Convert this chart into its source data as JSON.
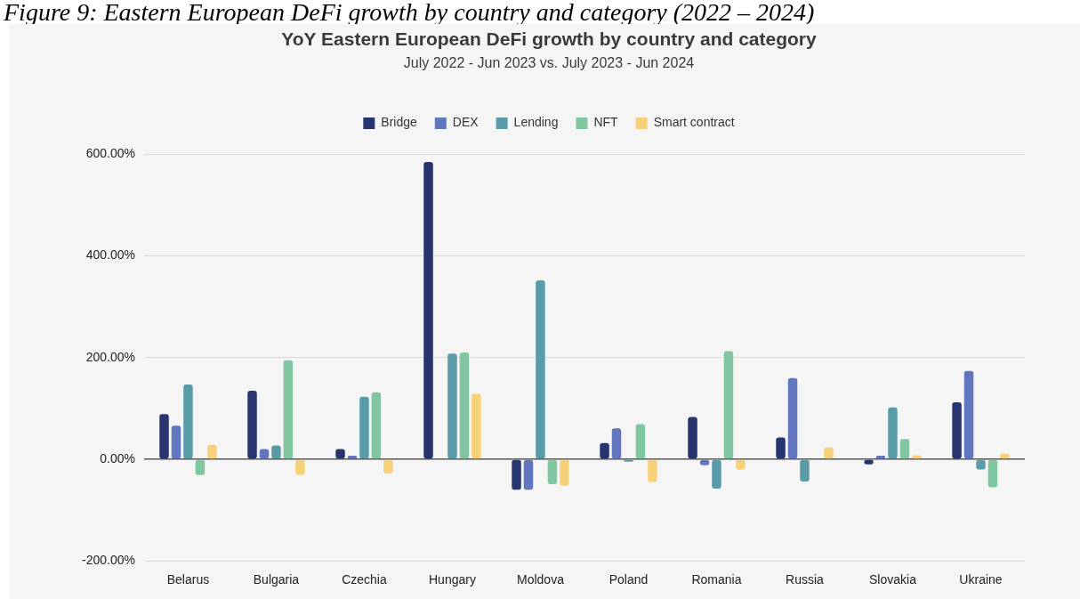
{
  "chart_data": {
    "type": "bar",
    "title": "YoY Eastern European DeFi growth by country and category",
    "subtitle": "July 2022 - Jun 2023 vs. July 2023 - Jun 2024",
    "annotations": [
      "Figure 9: Eastern European DeFi growth by country and category (2022 – 2024)"
    ],
    "categories": [
      "Belarus",
      "Bulgaria",
      "Czechia",
      "Hungary",
      "Moldova",
      "Poland",
      "Romania",
      "Russia",
      "Slovakia",
      "Ukraine"
    ],
    "series": [
      {
        "name": "Bridge",
        "color": "#27346e",
        "values": [
          89,
          135,
          20,
          585,
          -60,
          32,
          83,
          43,
          -10,
          112
        ]
      },
      {
        "name": "DEX",
        "color": "#6176be",
        "values": [
          66,
          20,
          7,
          null,
          -60,
          61,
          -12,
          160,
          7,
          174
        ]
      },
      {
        "name": "Lending",
        "color": "#5a9ba8",
        "values": [
          147,
          27,
          123,
          208,
          352,
          -5,
          -58,
          -44,
          102,
          -20
        ]
      },
      {
        "name": "NFT",
        "color": "#80c6a0",
        "values": [
          -31,
          195,
          132,
          210,
          -49,
          69,
          213,
          null,
          40,
          -55
        ]
      },
      {
        "name": "Smart contract",
        "color": "#f7d17a",
        "values": [
          28,
          -31,
          -28,
          129,
          -52,
          -45,
          -20,
          23,
          8,
          11
        ]
      }
    ],
    "ylim": [
      -200,
      600
    ],
    "yticks": [
      {
        "value": -200,
        "label": "-200.00%"
      },
      {
        "value": 0,
        "label": "0.00%"
      },
      {
        "value": 200,
        "label": "200.00%"
      },
      {
        "value": 400,
        "label": "400.00%"
      },
      {
        "value": 600,
        "label": "600.00%"
      }
    ],
    "grid": "y",
    "legend": "top"
  }
}
